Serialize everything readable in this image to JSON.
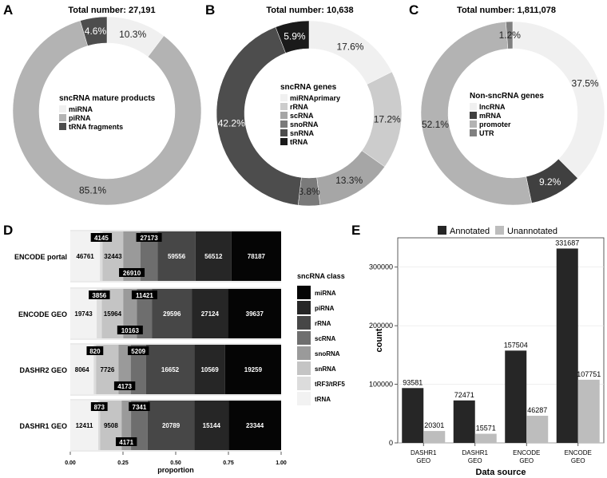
{
  "chart_data": [
    {
      "panel": "A",
      "type": "pie",
      "title": "Total number: 27,191",
      "legend_title": "sncRNA mature products",
      "legend_position": "center",
      "slices": [
        {
          "name": "miRNA",
          "percent": 10.3,
          "label": "10.3%",
          "color": "#f0f0f0"
        },
        {
          "name": "piRNA",
          "percent": 85.1,
          "label": "85.1%",
          "color": "#b3b3b3"
        },
        {
          "name": "tRNA fragments",
          "percent": 4.6,
          "label": "4.6%",
          "color": "#4d4d4d"
        }
      ]
    },
    {
      "panel": "B",
      "type": "pie",
      "title": "Total number: 10,638",
      "legend_title": "sncRNA genes",
      "legend_position": "center",
      "slices": [
        {
          "name": "miRNAprimary",
          "percent": 17.6,
          "label": "17.6%",
          "color": "#f0f0f0"
        },
        {
          "name": "rRNA",
          "percent": 17.2,
          "label": "17.2%",
          "color": "#cccccc"
        },
        {
          "name": "scRNA",
          "percent": 13.3,
          "label": "13.3%",
          "color": "#a6a6a6"
        },
        {
          "name": "snoRNA",
          "percent": 3.8,
          "label": "3.8%",
          "color": "#7a7a7a"
        },
        {
          "name": "snRNA",
          "percent": 42.2,
          "label": "42.2%",
          "color": "#4d4d4d"
        },
        {
          "name": "tRNA",
          "percent": 5.9,
          "label": "5.9%",
          "color": "#1a1a1a"
        }
      ]
    },
    {
      "panel": "C",
      "type": "pie",
      "title": "Total number: 1,811,078",
      "legend_title": "Non-sncRNA genes",
      "legend_position": "center",
      "slices": [
        {
          "name": "lncRNA",
          "percent": 37.5,
          "label": "37.5%",
          "color": "#f0f0f0"
        },
        {
          "name": "mRNA",
          "percent": 9.2,
          "label": "9.2%",
          "color": "#404040"
        },
        {
          "name": "promoter",
          "percent": 52.1,
          "label": "52.1%",
          "color": "#b3b3b3"
        },
        {
          "name": "UTR",
          "percent": 1.2,
          "label": "1.2%",
          "color": "#808080"
        }
      ]
    },
    {
      "panel": "D",
      "type": "bar",
      "orientation": "horizontal",
      "stacked": "fill",
      "xlabel": "proportion",
      "xticks": [
        "0.00",
        "0.25",
        "0.50",
        "0.75",
        "1.00"
      ],
      "categories": [
        "ENCODE portal",
        "ENCODE GEO",
        "DASHR2 GEO",
        "DASHR1 GEO"
      ],
      "legend_title": "sncRNA class",
      "legend_position": "right",
      "series": [
        {
          "name": "tRNA",
          "color": "#f2f2f2",
          "values": [
            46761,
            19743,
            8064,
            12411
          ]
        },
        {
          "name": "tRF3/tRF5",
          "color": "#dcdcdc",
          "values": [
            4145,
            3856,
            820,
            873
          ]
        },
        {
          "name": "snRNA",
          "color": "#c4c4c4",
          "values": [
            32443,
            15964,
            7726,
            9508
          ]
        },
        {
          "name": "snoRNA",
          "color": "#9a9a9a",
          "values": [
            26910,
            10163,
            4173,
            4171
          ]
        },
        {
          "name": "scRNA",
          "color": "#6e6e6e",
          "values": [
            27173,
            11421,
            5209,
            7341
          ]
        },
        {
          "name": "rRNA",
          "color": "#474747",
          "values": [
            59556,
            29596,
            16652,
            20789
          ]
        },
        {
          "name": "piRNA",
          "color": "#262626",
          "values": [
            56512,
            27124,
            10569,
            15144
          ]
        },
        {
          "name": "miRNA",
          "color": "#050505",
          "values": [
            78187,
            39637,
            19259,
            23344
          ]
        }
      ]
    },
    {
      "panel": "E",
      "type": "bar",
      "orientation": "vertical",
      "xlabel": "Data source",
      "ylabel": "count",
      "categories": [
        "DASHR1\nGEO",
        "DASHR1\nGEO",
        "ENCODE\nGEO",
        "ENCODE\nGEO"
      ],
      "ylim": [
        0,
        350000
      ],
      "yticks": [
        0,
        100000,
        200000,
        300000
      ],
      "legend_position": "top",
      "series": [
        {
          "name": "Annotated",
          "color": "#262626",
          "values": [
            93581,
            72471,
            157504,
            331687
          ]
        },
        {
          "name": "Unannotated",
          "color": "#bdbdbd",
          "values": [
            20301,
            15571,
            46287,
            107751
          ]
        }
      ]
    }
  ],
  "panel_letters": [
    "A",
    "B",
    "C",
    "D",
    "E"
  ]
}
